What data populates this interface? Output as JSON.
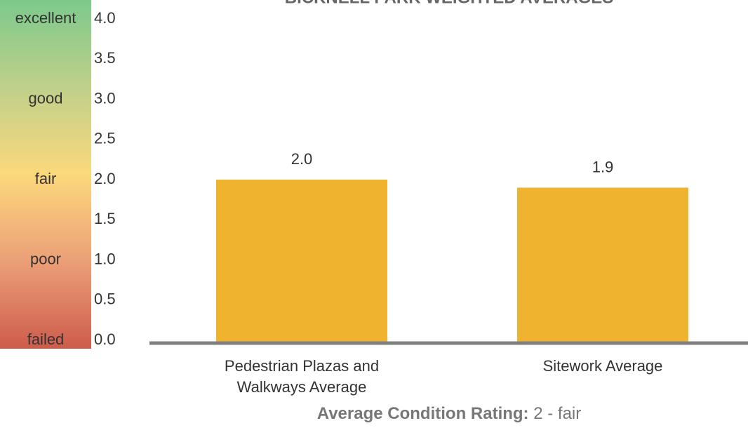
{
  "chart_data": {
    "type": "bar",
    "title": "BICKNELL PARK WEIGHTED AVERAGES",
    "categories": [
      "Pedestrian Plazas and Walkways Average",
      "Sitework Average"
    ],
    "values": [
      2.0,
      1.9
    ],
    "value_labels": [
      "2.0",
      "1.9"
    ],
    "color": "#f0b330",
    "ylim": [
      0,
      4
    ],
    "yticks": [
      {
        "value": 0,
        "label": "0.0"
      },
      {
        "value": 0.5,
        "label": "0.5"
      },
      {
        "value": 1,
        "label": "1.0"
      },
      {
        "value": 1.5,
        "label": "1.5"
      },
      {
        "value": 2,
        "label": "2.0"
      },
      {
        "value": 2.5,
        "label": "2.5"
      },
      {
        "value": 3,
        "label": "3.0"
      },
      {
        "value": 3.5,
        "label": "3.5"
      },
      {
        "value": 4,
        "label": "4.0"
      }
    ],
    "rating_labels": [
      {
        "value": 4,
        "label": "excellent"
      },
      {
        "value": 3,
        "label": "good"
      },
      {
        "value": 2,
        "label": "fair"
      },
      {
        "value": 1,
        "label": "poor"
      },
      {
        "value": 0,
        "label": "failed"
      }
    ],
    "footer": {
      "label": "Average Condition Rating:",
      "value": "2 - fair"
    }
  }
}
